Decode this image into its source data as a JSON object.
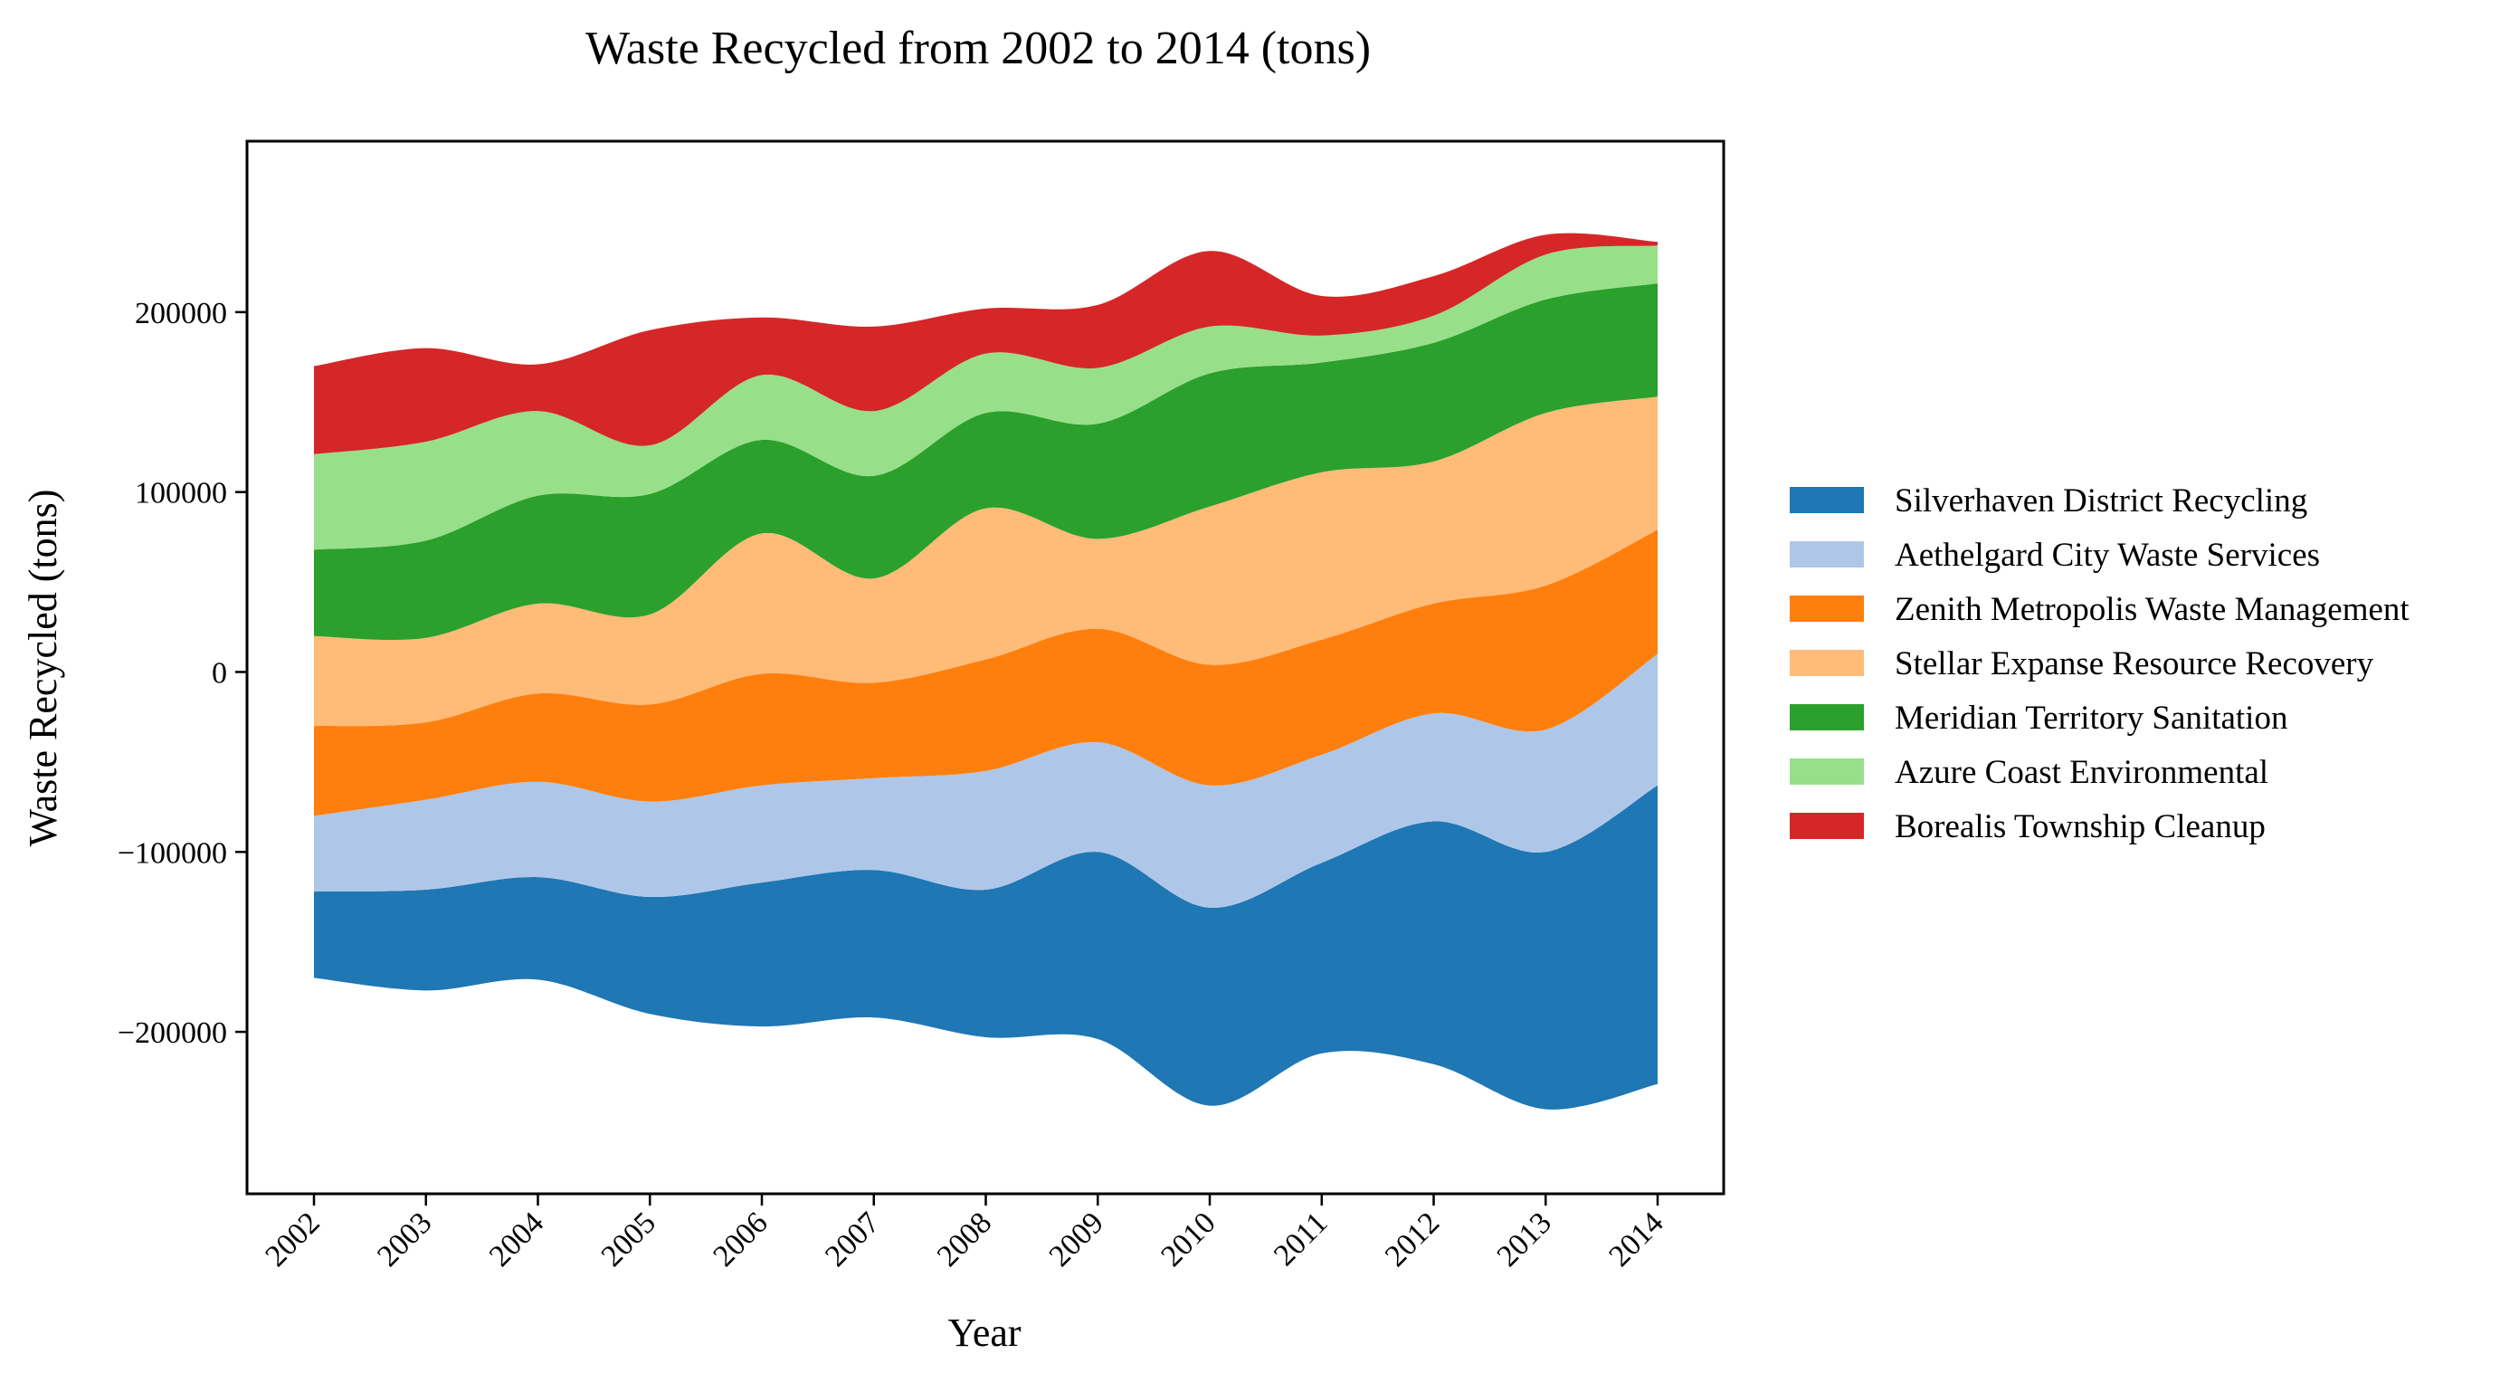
{
  "chart_data": {
    "type": "area",
    "subtype": "streamgraph",
    "title": "Waste Recycled from 2002 to 2014 (tons)",
    "xlabel": "Year",
    "ylabel": "Waste Recycled (tons)",
    "categories": [
      "2002",
      "2003",
      "2004",
      "2005",
      "2006",
      "2007",
      "2008",
      "2009",
      "2010",
      "2011",
      "2012",
      "2013",
      "2014"
    ],
    "ylim": [
      -290000,
      295000
    ],
    "yticks": [
      -200000,
      -100000,
      0,
      100000,
      200000
    ],
    "ytick_labels": [
      "−200000",
      "−100000",
      "0",
      "100000",
      "200000"
    ],
    "grid": false,
    "legend_position": "right",
    "baseline": [
      -170000,
      -177000,
      -171000,
      -190000,
      -197000,
      -192000,
      -203000,
      -204000,
      -241000,
      -212000,
      -218000,
      -243000,
      -229000
    ],
    "series": [
      {
        "name": "Silverhaven District Recycling",
        "color": "#1f77b4",
        "values": [
          48000,
          56000,
          57000,
          65000,
          80000,
          82000,
          82000,
          104000,
          110000,
          106000,
          135000,
          143000,
          166000
        ]
      },
      {
        "name": "Aethelgard City Waste Services",
        "color": "#aec7e8",
        "values": [
          42000,
          50000,
          53000,
          53000,
          54000,
          51000,
          66000,
          61000,
          68000,
          60000,
          60000,
          68000,
          73000
        ]
      },
      {
        "name": "Zenith Metropolis Waste Management",
        "color": "#ff7f0e",
        "values": [
          50000,
          43000,
          49000,
          54000,
          62000,
          53000,
          62000,
          63000,
          67000,
          64000,
          61000,
          80000,
          69000
        ]
      },
      {
        "name": "Stellar Expanse Resource Recovery",
        "color": "#ffbb78",
        "values": [
          50000,
          47000,
          50000,
          50000,
          78000,
          58000,
          84000,
          50000,
          88000,
          93000,
          79000,
          96000,
          74000
        ]
      },
      {
        "name": "Meridian Territory Sanitation",
        "color": "#2ca02c",
        "values": [
          48000,
          54000,
          60000,
          67000,
          52000,
          57000,
          53000,
          64000,
          74000,
          61000,
          66000,
          63000,
          63000
        ]
      },
      {
        "name": "Azure Coast Environmental",
        "color": "#98df8a",
        "values": [
          53000,
          55000,
          47000,
          27000,
          36000,
          36000,
          33000,
          31000,
          26000,
          15000,
          15000,
          25000,
          21000
        ]
      },
      {
        "name": "Borealis Township Cleanup",
        "color": "#d62728",
        "values": [
          49000,
          52000,
          26000,
          64000,
          32000,
          47000,
          25000,
          35000,
          42000,
          22000,
          22000,
          11000,
          2000
        ]
      }
    ]
  }
}
